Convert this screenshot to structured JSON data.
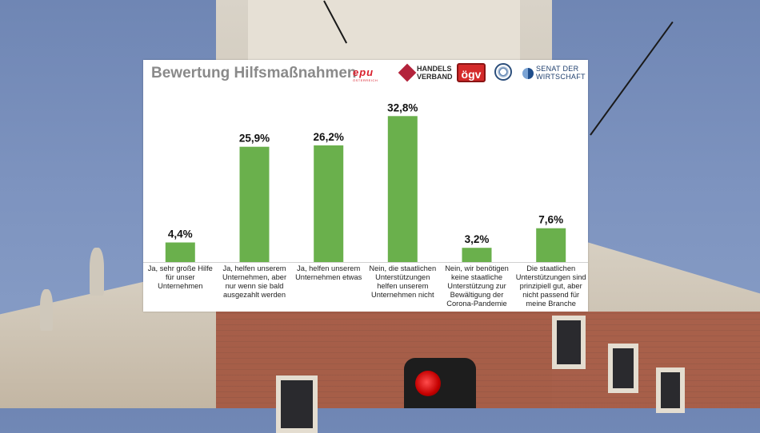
{
  "title": "Bewertung Hilfsmaßnahmen",
  "logos": {
    "epu": "epu",
    "epu_sub": "ÖSTERREICH",
    "handelsverband_line1": "HANDELS",
    "handelsverband_line2": "VERBAND",
    "ogv": "ögv",
    "senat_line1": "SENAT DER",
    "senat_line2": "WIRTSCHAFT"
  },
  "colors": {
    "bar": "#6ab04c",
    "title": "#8a8a8a"
  },
  "chart_data": {
    "type": "bar",
    "title": "Bewertung Hilfsmaßnahmen",
    "categories": [
      "Ja, sehr große Hilfe für unser Unternehmen",
      "Ja, helfen unserem Unternehmen, aber nur wenn sie bald ausgezahlt werden",
      "Ja, helfen unserem Unternehmen etwas",
      "Nein, die staatlichen Unterstützungen helfen unserem Unternehmen nicht",
      "Nein, wir benötigen keine staatliche Unterstützung zur Bewältigung der Corona-Pandemie",
      "Die staatlichen Unterstützungen sind prinzipiell gut, aber nicht passend für meine Branche"
    ],
    "values": [
      4.4,
      25.9,
      26.2,
      32.8,
      3.2,
      7.6
    ],
    "value_labels": [
      "4,4%",
      "25,9%",
      "26,2%",
      "32,8%",
      "3,2%",
      "7,6%"
    ],
    "unit": "%",
    "ylim": [
      0,
      35
    ],
    "grid": false,
    "legend": "none"
  }
}
